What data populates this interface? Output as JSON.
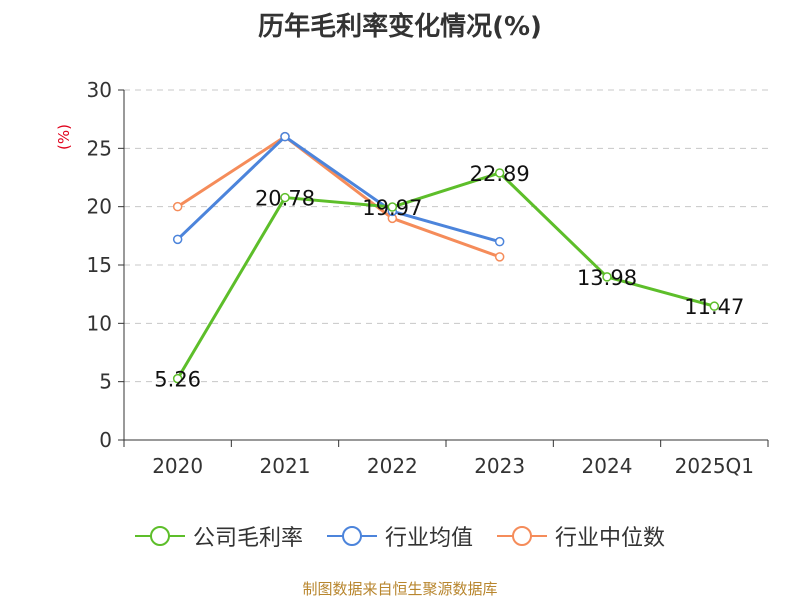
{
  "title": "历年毛利率变化情况(%)",
  "source": "制图数据来自恒生聚源数据库",
  "chart_data": {
    "type": "line",
    "title": "历年毛利率变化情况(%)",
    "ylabel": "(%)",
    "categories": [
      "2020",
      "2021",
      "2022",
      "2023",
      "2024",
      "2025Q1"
    ],
    "ylim": [
      0,
      30
    ],
    "yticks": [
      0,
      5,
      10,
      15,
      20,
      25,
      30
    ],
    "grid": true,
    "legend_position": "bottom",
    "series": [
      {
        "name": "公司毛利率",
        "color": "#5dbe2a",
        "values": [
          5.26,
          20.78,
          19.97,
          22.89,
          13.98,
          11.47
        ],
        "show_labels": true
      },
      {
        "name": "行业均值",
        "color": "#4c84db",
        "values": [
          17.2,
          26.0,
          19.6,
          17.0,
          null,
          null
        ],
        "show_labels": false
      },
      {
        "name": "行业中位数",
        "color": "#f58c5a",
        "values": [
          20.0,
          26.0,
          19.0,
          15.7,
          null,
          null
        ],
        "show_labels": false
      }
    ],
    "data_labels": [
      "5.26",
      "20.78",
      "19.97",
      "22.89",
      "13.98",
      "11.47"
    ]
  }
}
